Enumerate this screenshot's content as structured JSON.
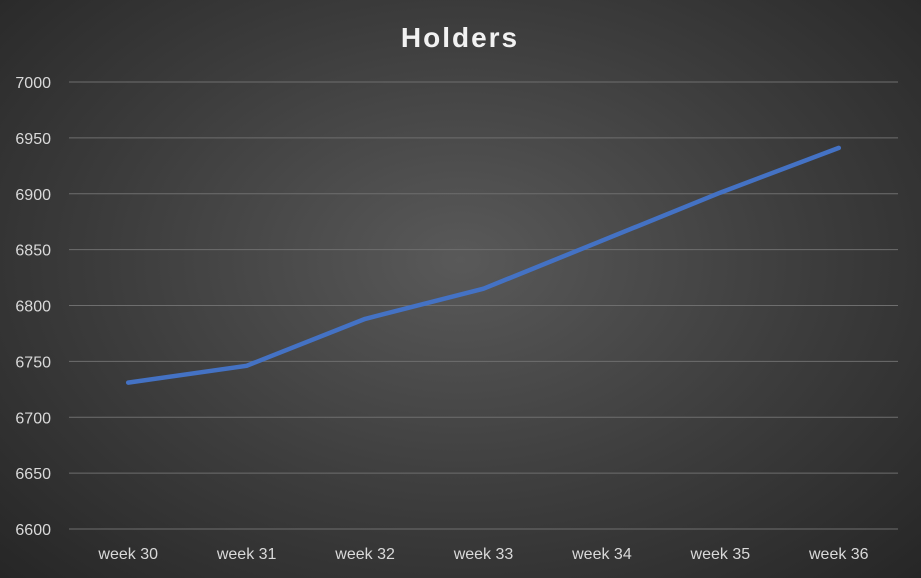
{
  "chart_data": {
    "type": "line",
    "title": "Holders",
    "xlabel": "",
    "ylabel": "",
    "categories": [
      "week 30",
      "week 31",
      "week 32",
      "week 33",
      "week 34",
      "week 35",
      "week 36"
    ],
    "series": [
      {
        "values": [
          6731,
          6746,
          6788,
          6815,
          6858,
          6901,
          6941
        ],
        "color": "#4472c4"
      }
    ],
    "ylim": [
      6600,
      7000
    ],
    "yticks": [
      6600,
      6650,
      6700,
      6750,
      6800,
      6850,
      6900,
      6950,
      7000
    ],
    "grid": true,
    "legend": "none"
  }
}
